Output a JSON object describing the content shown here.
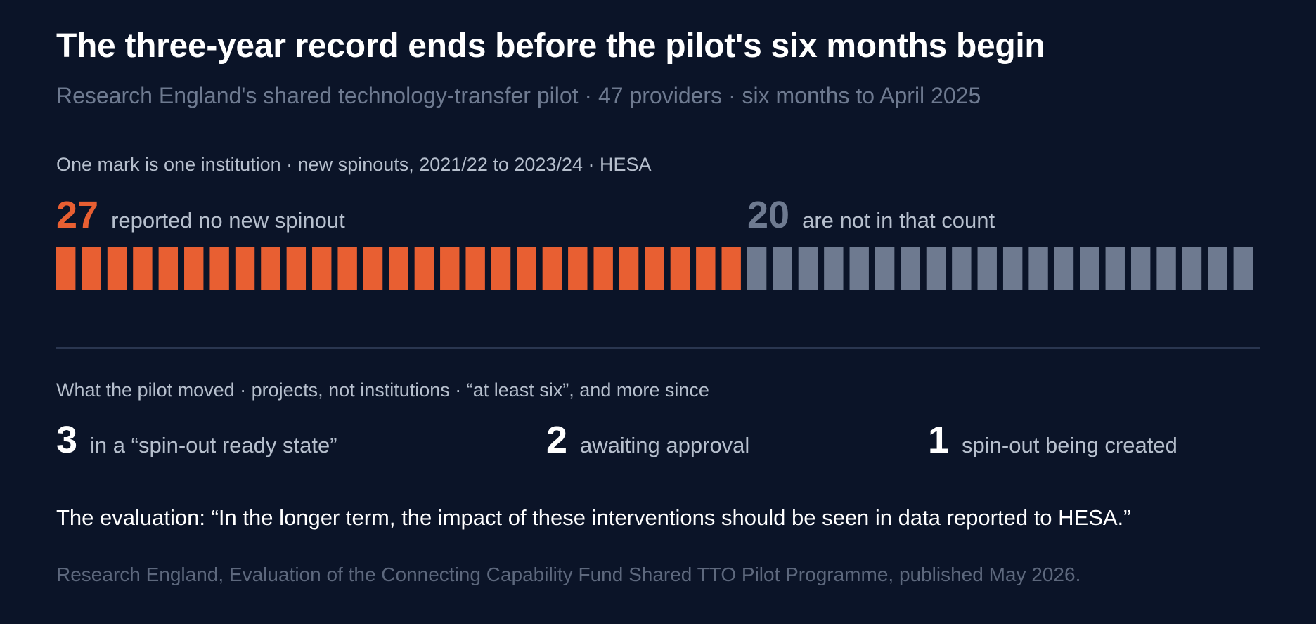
{
  "title": "The three-year record ends before the pilot's six months begin",
  "subtitle": "Research England's shared technology-transfer pilot · 47 providers · six months to April 2025",
  "chart_data": {
    "type": "bar",
    "caption": "One mark is one institution · new spinouts, 2021/22 to 2023/24 · HESA",
    "groups": [
      {
        "count": 27,
        "label": "reported no new spinout",
        "color": "#e85f32"
      },
      {
        "count": 20,
        "label": "are not in that count",
        "color": "#6e7a90"
      }
    ],
    "total": 47
  },
  "pilot": {
    "caption": "What the pilot moved · projects, not institutions · “at least six”, and more since",
    "stats": [
      {
        "value": "3",
        "label": "in a “spin-out ready state”"
      },
      {
        "value": "2",
        "label": "awaiting approval"
      },
      {
        "value": "1",
        "label": "spin-out being created"
      }
    ]
  },
  "quote": "The evaluation: “In the longer term, the impact of these interventions should be seen in data reported to HESA.”",
  "source": "Research England, Evaluation of the Connecting Capability Fund Shared TTO Pilot Programme, published May 2026."
}
